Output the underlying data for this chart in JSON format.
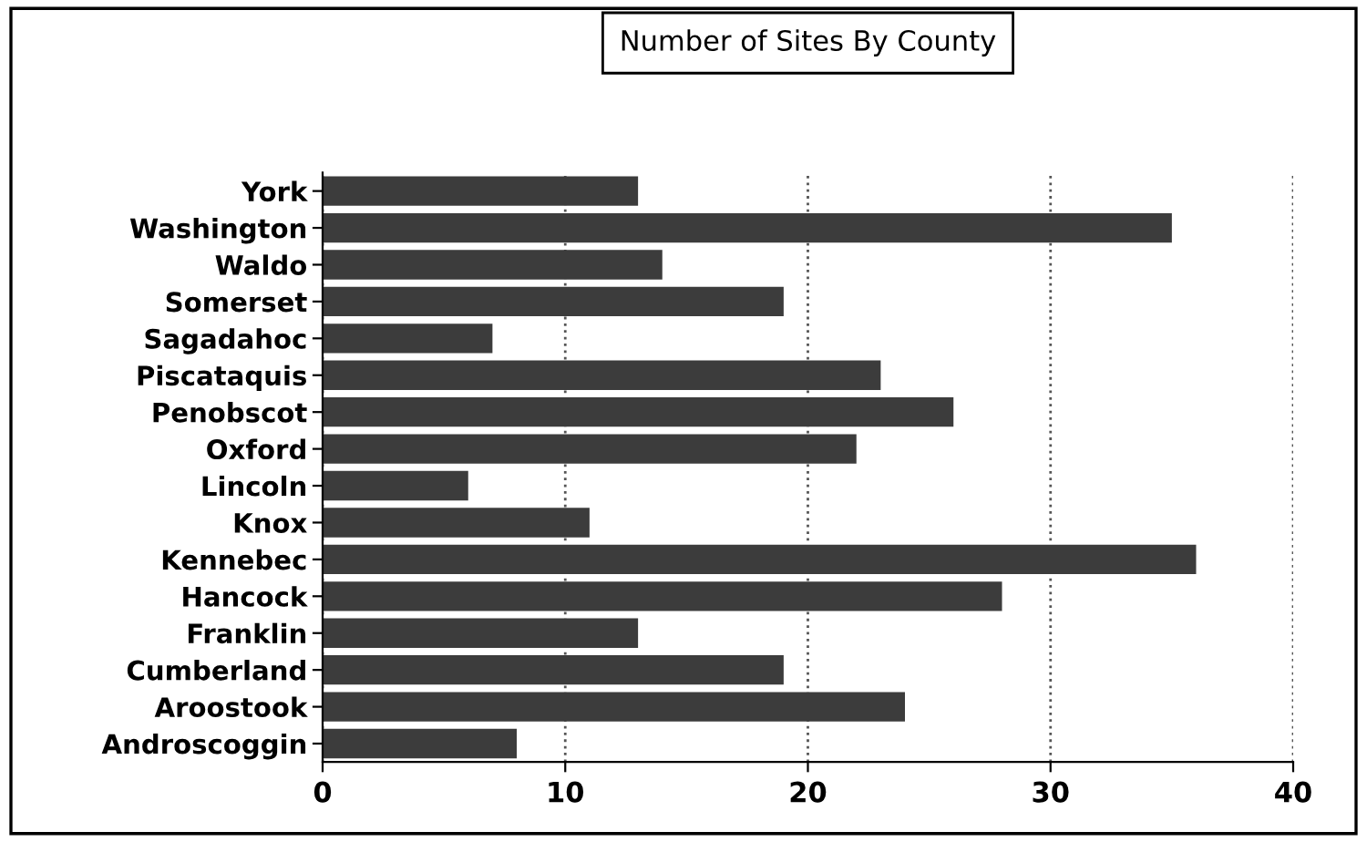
{
  "chart_data": {
    "type": "bar",
    "title": "Number of Sites By County",
    "orientation": "horizontal",
    "categories": [
      "York",
      "Washington",
      "Waldo",
      "Somerset",
      "Sagadahoc",
      "Piscataquis",
      "Penobscot",
      "Oxford",
      "Lincoln",
      "Knox",
      "Kennebec",
      "Hancock",
      "Franklin",
      "Cumberland",
      "Aroostook",
      "Androscoggin"
    ],
    "values": [
      13,
      35,
      14,
      19,
      7,
      23,
      26,
      22,
      6,
      11,
      36,
      28,
      13,
      19,
      24,
      8
    ],
    "color": "#3c3c3c",
    "xlim": [
      0,
      40
    ],
    "xticks": [
      0,
      10,
      20,
      30,
      40
    ],
    "grid": "x"
  }
}
